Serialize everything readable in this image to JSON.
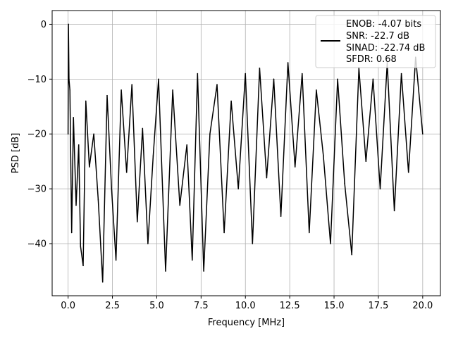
{
  "chart_data": {
    "type": "line",
    "title": "",
    "xlabel": "Frequency [MHz]",
    "ylabel": "PSD [dB]",
    "xlim": [
      -0.9,
      21.0
    ],
    "ylim": [
      -49.5,
      2.5
    ],
    "xticks": [
      0.0,
      2.5,
      5.0,
      7.5,
      10.0,
      12.5,
      15.0,
      17.5,
      20.0
    ],
    "xtick_labels": [
      "0.0",
      "2.5",
      "5.0",
      "7.5",
      "10.0",
      "12.5",
      "15.0",
      "17.5",
      "20.0"
    ],
    "yticks": [
      0,
      -10,
      -20,
      -30,
      -40
    ],
    "ytick_labels": [
      "0",
      "−10",
      "−20",
      "−30",
      "−40"
    ],
    "grid": true,
    "legend_position": "top-right",
    "legend_lines": [
      "ENOB: -4.07 bits",
      "SNR: -22.7 dB",
      "SINAD: -22.74 dB",
      "SFDR: 0.68"
    ],
    "series": [
      {
        "color": "#000000",
        "x": [
          0.0,
          0.02,
          0.05,
          0.1,
          0.2,
          0.3,
          0.45,
          0.6,
          0.7,
          0.85,
          1.0,
          1.2,
          1.45,
          1.7,
          1.95,
          2.2,
          2.45,
          2.7,
          3.0,
          3.3,
          3.6,
          3.9,
          4.2,
          4.5,
          4.8,
          5.1,
          5.5,
          5.9,
          6.3,
          6.7,
          7.0,
          7.3,
          7.65,
          8.0,
          8.4,
          8.8,
          9.2,
          9.6,
          10.0,
          10.4,
          10.8,
          11.2,
          11.6,
          12.0,
          12.4,
          12.8,
          13.2,
          13.6,
          14.0,
          14.4,
          14.8,
          15.2,
          15.6,
          16.0,
          16.4,
          16.8,
          17.2,
          17.6,
          18.0,
          18.4,
          18.8,
          19.2,
          19.6,
          20.0
        ],
        "y": [
          -20,
          0,
          -10,
          -12,
          -38,
          -17,
          -33,
          -22,
          -40.5,
          -44,
          -14,
          -26,
          -20,
          -32,
          -47,
          -13,
          -30,
          -43,
          -12,
          -27,
          -11,
          -36,
          -19,
          -40,
          -24,
          -10,
          -45,
          -12,
          -33,
          -22,
          -43,
          -9,
          -45,
          -20,
          -11,
          -38,
          -14,
          -30,
          -9,
          -40,
          -8,
          -28,
          -10,
          -35,
          -7,
          -26,
          -9,
          -38,
          -12,
          -24,
          -40,
          -10,
          -29,
          -42,
          -8,
          -25,
          -10,
          -30,
          -7,
          -34,
          -9,
          -27,
          -6,
          -20
        ]
      }
    ]
  }
}
